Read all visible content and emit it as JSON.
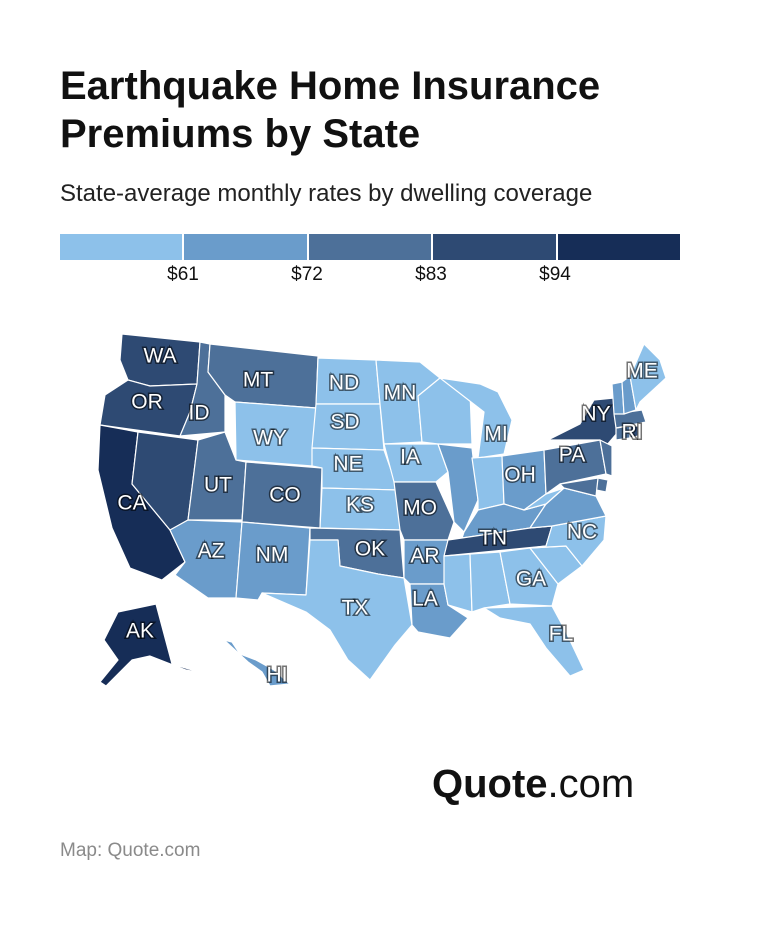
{
  "title": "Earthquake Home Insurance Premiums by State",
  "subtitle": "State-average monthly rates by dwelling coverage",
  "legend": {
    "colors": [
      "#8dc1ea",
      "#6a9ccb",
      "#4d7099",
      "#2e4a73",
      "#162d57"
    ],
    "ticks": [
      "$61",
      "$72",
      "$83",
      "$94"
    ]
  },
  "states": [
    {
      "abbr": "WA",
      "tier": 3
    },
    {
      "abbr": "OR",
      "tier": 3
    },
    {
      "abbr": "CA",
      "tier": 4
    },
    {
      "abbr": "ID",
      "tier": 2
    },
    {
      "abbr": "NV",
      "tier": 3
    },
    {
      "abbr": "MT",
      "tier": 2
    },
    {
      "abbr": "WY",
      "tier": 0
    },
    {
      "abbr": "UT",
      "tier": 2
    },
    {
      "abbr": "CO",
      "tier": 2
    },
    {
      "abbr": "AZ",
      "tier": 1
    },
    {
      "abbr": "NM",
      "tier": 1
    },
    {
      "abbr": "ND",
      "tier": 0
    },
    {
      "abbr": "SD",
      "tier": 0
    },
    {
      "abbr": "NE",
      "tier": 0
    },
    {
      "abbr": "KS",
      "tier": 0
    },
    {
      "abbr": "OK",
      "tier": 2
    },
    {
      "abbr": "TX",
      "tier": 0
    },
    {
      "abbr": "MN",
      "tier": 0
    },
    {
      "abbr": "IA",
      "tier": 0
    },
    {
      "abbr": "MO",
      "tier": 2
    },
    {
      "abbr": "AR",
      "tier": 1
    },
    {
      "abbr": "LA",
      "tier": 1
    },
    {
      "abbr": "WI",
      "tier": 0
    },
    {
      "abbr": "IL",
      "tier": 1
    },
    {
      "abbr": "MI",
      "tier": 0
    },
    {
      "abbr": "IN",
      "tier": 0
    },
    {
      "abbr": "OH",
      "tier": 1
    },
    {
      "abbr": "KY",
      "tier": 1
    },
    {
      "abbr": "TN",
      "tier": 3
    },
    {
      "abbr": "MS",
      "tier": 0
    },
    {
      "abbr": "AL",
      "tier": 0
    },
    {
      "abbr": "GA",
      "tier": 0
    },
    {
      "abbr": "FL",
      "tier": 0
    },
    {
      "abbr": "SC",
      "tier": 0
    },
    {
      "abbr": "NC",
      "tier": 0
    },
    {
      "abbr": "VA",
      "tier": 1
    },
    {
      "abbr": "WV",
      "tier": 0
    },
    {
      "abbr": "PA",
      "tier": 2
    },
    {
      "abbr": "NY",
      "tier": 3
    },
    {
      "abbr": "NJ",
      "tier": 2
    },
    {
      "abbr": "DE",
      "tier": 2
    },
    {
      "abbr": "MD",
      "tier": 2
    },
    {
      "abbr": "CT",
      "tier": 2
    },
    {
      "abbr": "RI",
      "tier": 3
    },
    {
      "abbr": "MA",
      "tier": 2
    },
    {
      "abbr": "VT",
      "tier": 1
    },
    {
      "abbr": "NH",
      "tier": 1
    },
    {
      "abbr": "ME",
      "tier": 0
    },
    {
      "abbr": "AK",
      "tier": 4
    },
    {
      "abbr": "HI",
      "tier": 1
    }
  ],
  "labels": {
    "WA": "WA",
    "OR": "OR",
    "CA": "CA",
    "ID": "ID",
    "MT": "MT",
    "WY": "WY",
    "UT": "UT",
    "CO": "CO",
    "AZ": "AZ",
    "NM": "NM",
    "ND": "ND",
    "SD": "SD",
    "NE": "NE",
    "KS": "KS",
    "OK": "OK",
    "TX": "TX",
    "MN": "MN",
    "IA": "IA",
    "MO": "MO",
    "AR": "AR",
    "LA": "LA",
    "MI": "MI",
    "OH": "OH",
    "TN": "TN",
    "GA": "GA",
    "FL": "FL",
    "NC": "NC",
    "PA": "PA",
    "NY": "NY",
    "RI": "RI",
    "ME": "ME",
    "AK": "AK",
    "HI": "HI"
  },
  "brand": {
    "bold": "Quote",
    "light": ".com"
  },
  "footer": "Map: Quote.com"
}
